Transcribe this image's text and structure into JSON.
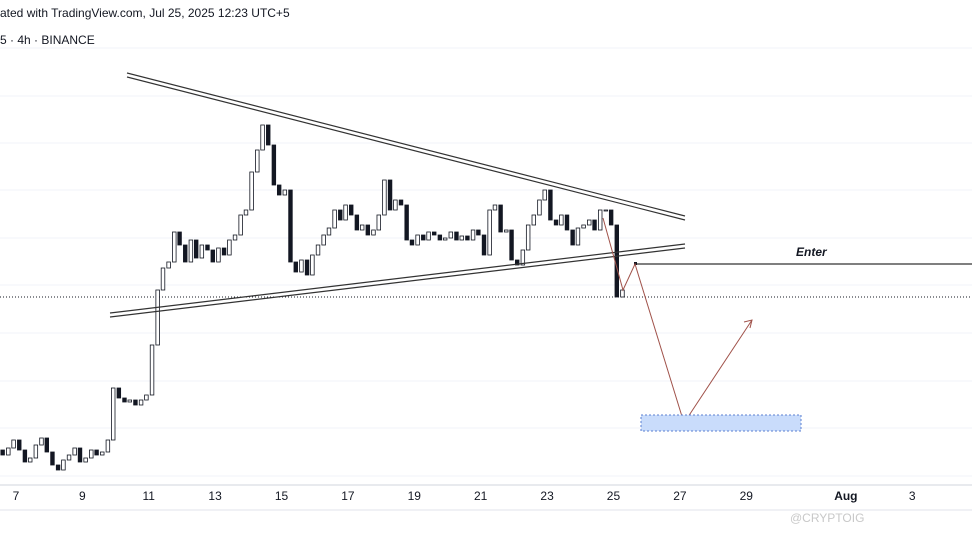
{
  "header": {
    "caption": "ated with TradingView.com, Jul 25, 2025 12:23 UTC+5",
    "symbol": "5 · 4h · BINANCE"
  },
  "chart_data": {
    "type": "candlestick",
    "x": [
      6.6,
      6.77,
      6.93,
      7.1,
      7.27,
      7.43,
      7.6,
      7.77,
      7.93,
      8.1,
      8.27,
      8.43,
      8.6,
      8.77,
      8.93,
      9.1,
      9.27,
      9.43,
      9.6,
      9.77,
      9.93,
      10.1,
      10.27,
      10.43,
      10.6,
      10.77,
      10.93,
      11.1,
      11.27,
      11.43,
      11.6,
      11.77,
      11.93,
      12.1,
      12.27,
      12.43,
      12.6,
      12.77,
      12.93,
      13.1,
      13.27,
      13.43,
      13.6,
      13.77,
      13.93,
      14.1,
      14.27,
      14.43,
      14.6,
      14.77,
      14.93,
      15.1,
      15.27,
      15.43,
      15.6,
      15.77,
      15.93,
      16.1,
      16.27,
      16.43,
      16.6,
      16.77,
      16.93,
      17.1,
      17.27,
      17.43,
      17.6,
      17.77,
      17.93,
      18.1,
      18.27,
      18.43,
      18.6,
      18.77,
      18.93,
      19.1,
      19.27,
      19.43,
      19.6,
      19.77,
      19.93,
      20.1,
      20.27,
      20.43,
      20.6,
      20.77,
      20.93,
      21.1,
      21.27,
      21.43,
      21.6,
      21.77,
      21.93,
      22.1,
      22.27,
      22.43,
      22.6,
      22.77,
      22.93,
      23.1,
      23.27,
      23.43,
      23.6,
      23.77,
      23.93,
      24.1,
      24.27,
      24.43,
      24.6,
      24.77,
      24.93,
      25.1,
      25.27
    ],
    "open": [
      35,
      30,
      37,
      45,
      35,
      23,
      27,
      40,
      47,
      33,
      20,
      15,
      25,
      30,
      37,
      23,
      27,
      35,
      30,
      33,
      45,
      97,
      87,
      83,
      85,
      80,
      85,
      90,
      140,
      195,
      217,
      223,
      253,
      240,
      223,
      245,
      227,
      240,
      235,
      223,
      237,
      230,
      245,
      250,
      270,
      275,
      313,
      335,
      360,
      340,
      300,
      290,
      295,
      223,
      213,
      225,
      210,
      230,
      240,
      250,
      257,
      275,
      265,
      280,
      270,
      255,
      260,
      250,
      255,
      270,
      305,
      275,
      285,
      280,
      245,
      240,
      250,
      245,
      253,
      250,
      245,
      247,
      253,
      245,
      249,
      245,
      255,
      250,
      230,
      275,
      280,
      253,
      255,
      225,
      220,
      235,
      260,
      270,
      285,
      295,
      265,
      260,
      270,
      255,
      240,
      257,
      260,
      265,
      255,
      275,
      275,
      260,
      188
    ],
    "close": [
      30,
      37,
      45,
      35,
      23,
      27,
      40,
      47,
      33,
      20,
      15,
      25,
      30,
      37,
      23,
      27,
      35,
      30,
      33,
      45,
      97,
      87,
      83,
      85,
      80,
      85,
      90,
      140,
      195,
      217,
      223,
      253,
      240,
      223,
      245,
      227,
      240,
      235,
      223,
      237,
      230,
      245,
      250,
      270,
      275,
      313,
      335,
      360,
      340,
      300,
      290,
      295,
      223,
      213,
      225,
      210,
      230,
      240,
      250,
      257,
      275,
      265,
      280,
      270,
      255,
      260,
      250,
      255,
      270,
      305,
      275,
      285,
      280,
      245,
      240,
      250,
      245,
      253,
      250,
      245,
      247,
      253,
      245,
      249,
      245,
      255,
      250,
      230,
      275,
      280,
      253,
      255,
      225,
      220,
      235,
      260,
      270,
      285,
      295,
      265,
      260,
      270,
      255,
      240,
      257,
      260,
      265,
      255,
      275,
      275,
      260,
      188,
      195
    ],
    "xlim": [
      6.52,
      35.8
    ],
    "xticks": [
      7,
      9,
      11,
      13,
      15,
      17,
      19,
      21,
      23,
      25,
      27,
      29,
      {
        "value": 32,
        "label": "Aug"
      },
      {
        "value": 34,
        "label": "3"
      }
    ],
    "ylim": [
      0,
      485
    ],
    "up_color": "#ffffff",
    "down_color": "#131722",
    "annotation": "Enter"
  },
  "watermark": "@CRYPTOIG"
}
